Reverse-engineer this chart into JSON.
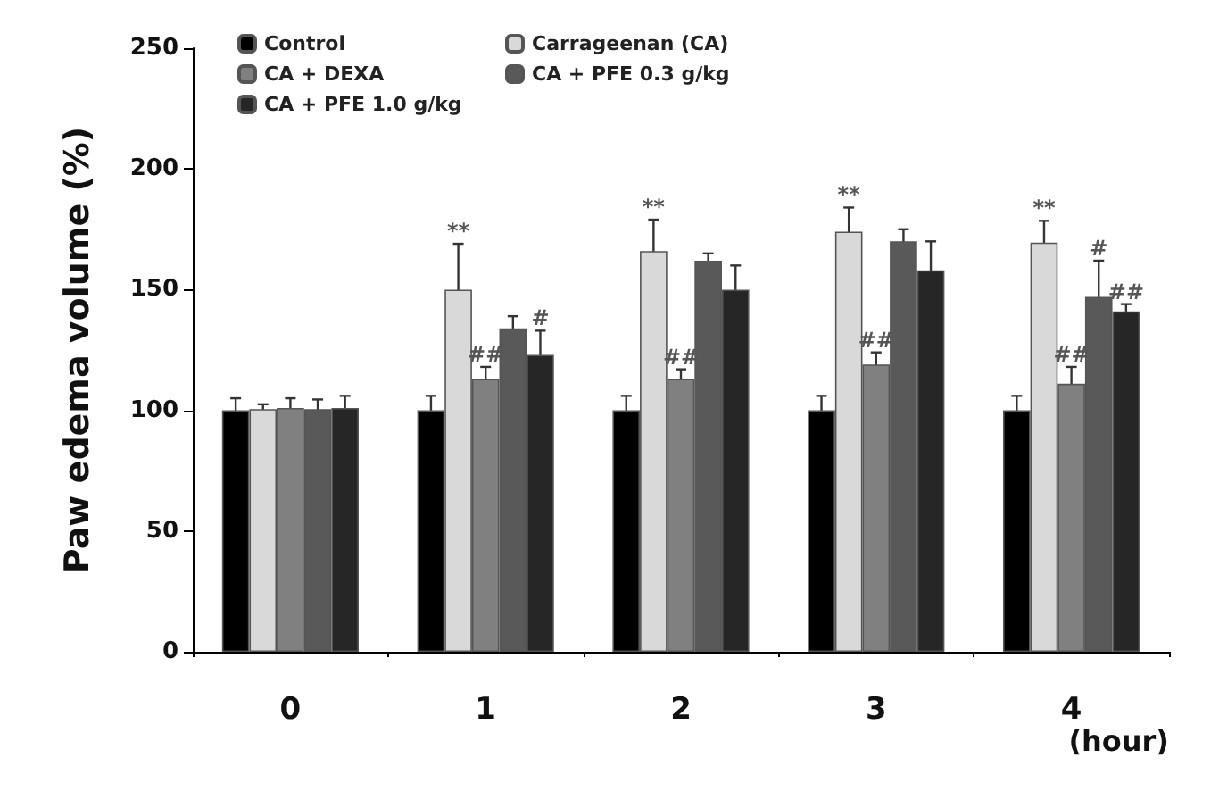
{
  "chart_data": {
    "type": "bar",
    "xlabel": "(hour)",
    "ylabel": "Paw edema volume (%)",
    "categories": [
      "0",
      "1",
      "2",
      "3",
      "4"
    ],
    "series": [
      {
        "name": "Control",
        "color": "#000000",
        "values": [
          100,
          100,
          100,
          100,
          100
        ],
        "errors": [
          5,
          6,
          6,
          6,
          6
        ]
      },
      {
        "name": "Carrageenan (CA)",
        "color": "#d9d9d9",
        "values": [
          100.5,
          150,
          166,
          174,
          169.5
        ],
        "errors": [
          2,
          19,
          13,
          10,
          9
        ],
        "value_labels": [
          null,
          "**",
          "**",
          "**",
          "**"
        ]
      },
      {
        "name": "CA + DEXA",
        "color": "#808080",
        "values": [
          101,
          113,
          113,
          119,
          111
        ],
        "errors": [
          4,
          5,
          4,
          5,
          7
        ],
        "value_labels": [
          null,
          "##",
          "##",
          "##",
          "##"
        ]
      },
      {
        "name": "CA + PFE 0.3 g/kg",
        "color": "#595959",
        "values": [
          100.5,
          134,
          162,
          170,
          147
        ],
        "errors": [
          4,
          5,
          3,
          5,
          15
        ],
        "value_labels": [
          null,
          null,
          null,
          null,
          "#"
        ]
      },
      {
        "name": "CA + PFE 1.0 g/kg",
        "color": "#262626",
        "values": [
          101,
          123,
          150,
          158,
          141
        ],
        "errors": [
          5,
          10,
          10,
          12,
          3
        ],
        "value_labels": [
          null,
          "#",
          null,
          null,
          "##"
        ]
      }
    ],
    "ylim": [
      0,
      250
    ],
    "yticks": [
      0,
      50,
      100,
      150,
      200,
      250
    ],
    "grid": false,
    "legend": "top left"
  }
}
